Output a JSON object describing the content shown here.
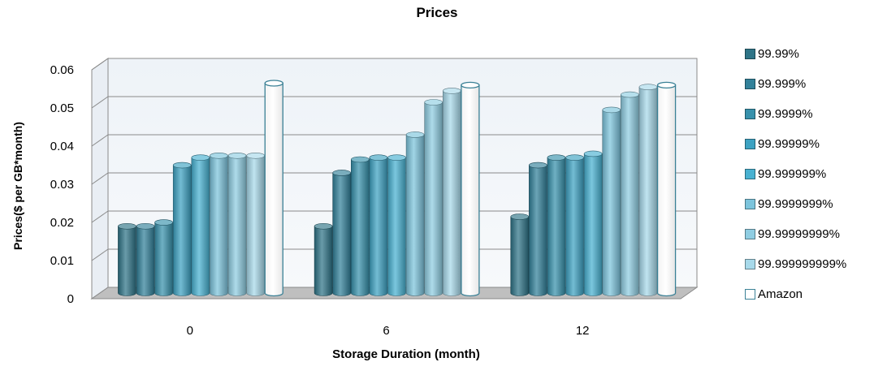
{
  "chart_data": {
    "type": "bar",
    "title": "Prices",
    "xlabel": "Storage Duration (month)",
    "ylabel": "Prices($ per GB*month)",
    "categories": [
      "0",
      "6",
      "12"
    ],
    "yticks": [
      "0",
      "0.01",
      "0.02",
      "0.03",
      "0.04",
      "0.05",
      "0.06"
    ],
    "ylim": [
      0,
      0.06
    ],
    "grid": true,
    "legend_position": "right",
    "series": [
      {
        "name": "99.99%",
        "color": "#2e7487",
        "values": [
          0.0175,
          0.0175,
          0.02
        ]
      },
      {
        "name": "99.999%",
        "color": "#32819a",
        "values": [
          0.0175,
          0.0315,
          0.0335
        ]
      },
      {
        "name": "99.9999%",
        "color": "#3791ac",
        "values": [
          0.0185,
          0.035,
          0.0355
        ]
      },
      {
        "name": "99.99999%",
        "color": "#3da2c2",
        "values": [
          0.0335,
          0.0355,
          0.0355
        ]
      },
      {
        "name": "99.999999%",
        "color": "#48b1d1",
        "values": [
          0.0355,
          0.0355,
          0.0365
        ]
      },
      {
        "name": "99.9999999%",
        "color": "#7cc4dc",
        "values": [
          0.036,
          0.0415,
          0.048
        ]
      },
      {
        "name": "99.99999999%",
        "color": "#8fcde2",
        "values": [
          0.036,
          0.05,
          0.052
        ]
      },
      {
        "name": "99.999999999%",
        "color": "#a7d9ea",
        "values": [
          0.036,
          0.053,
          0.054
        ]
      },
      {
        "name": "Amazon",
        "color": "#ffffff",
        "values": [
          0.055,
          0.0545,
          0.0545
        ]
      }
    ]
  }
}
